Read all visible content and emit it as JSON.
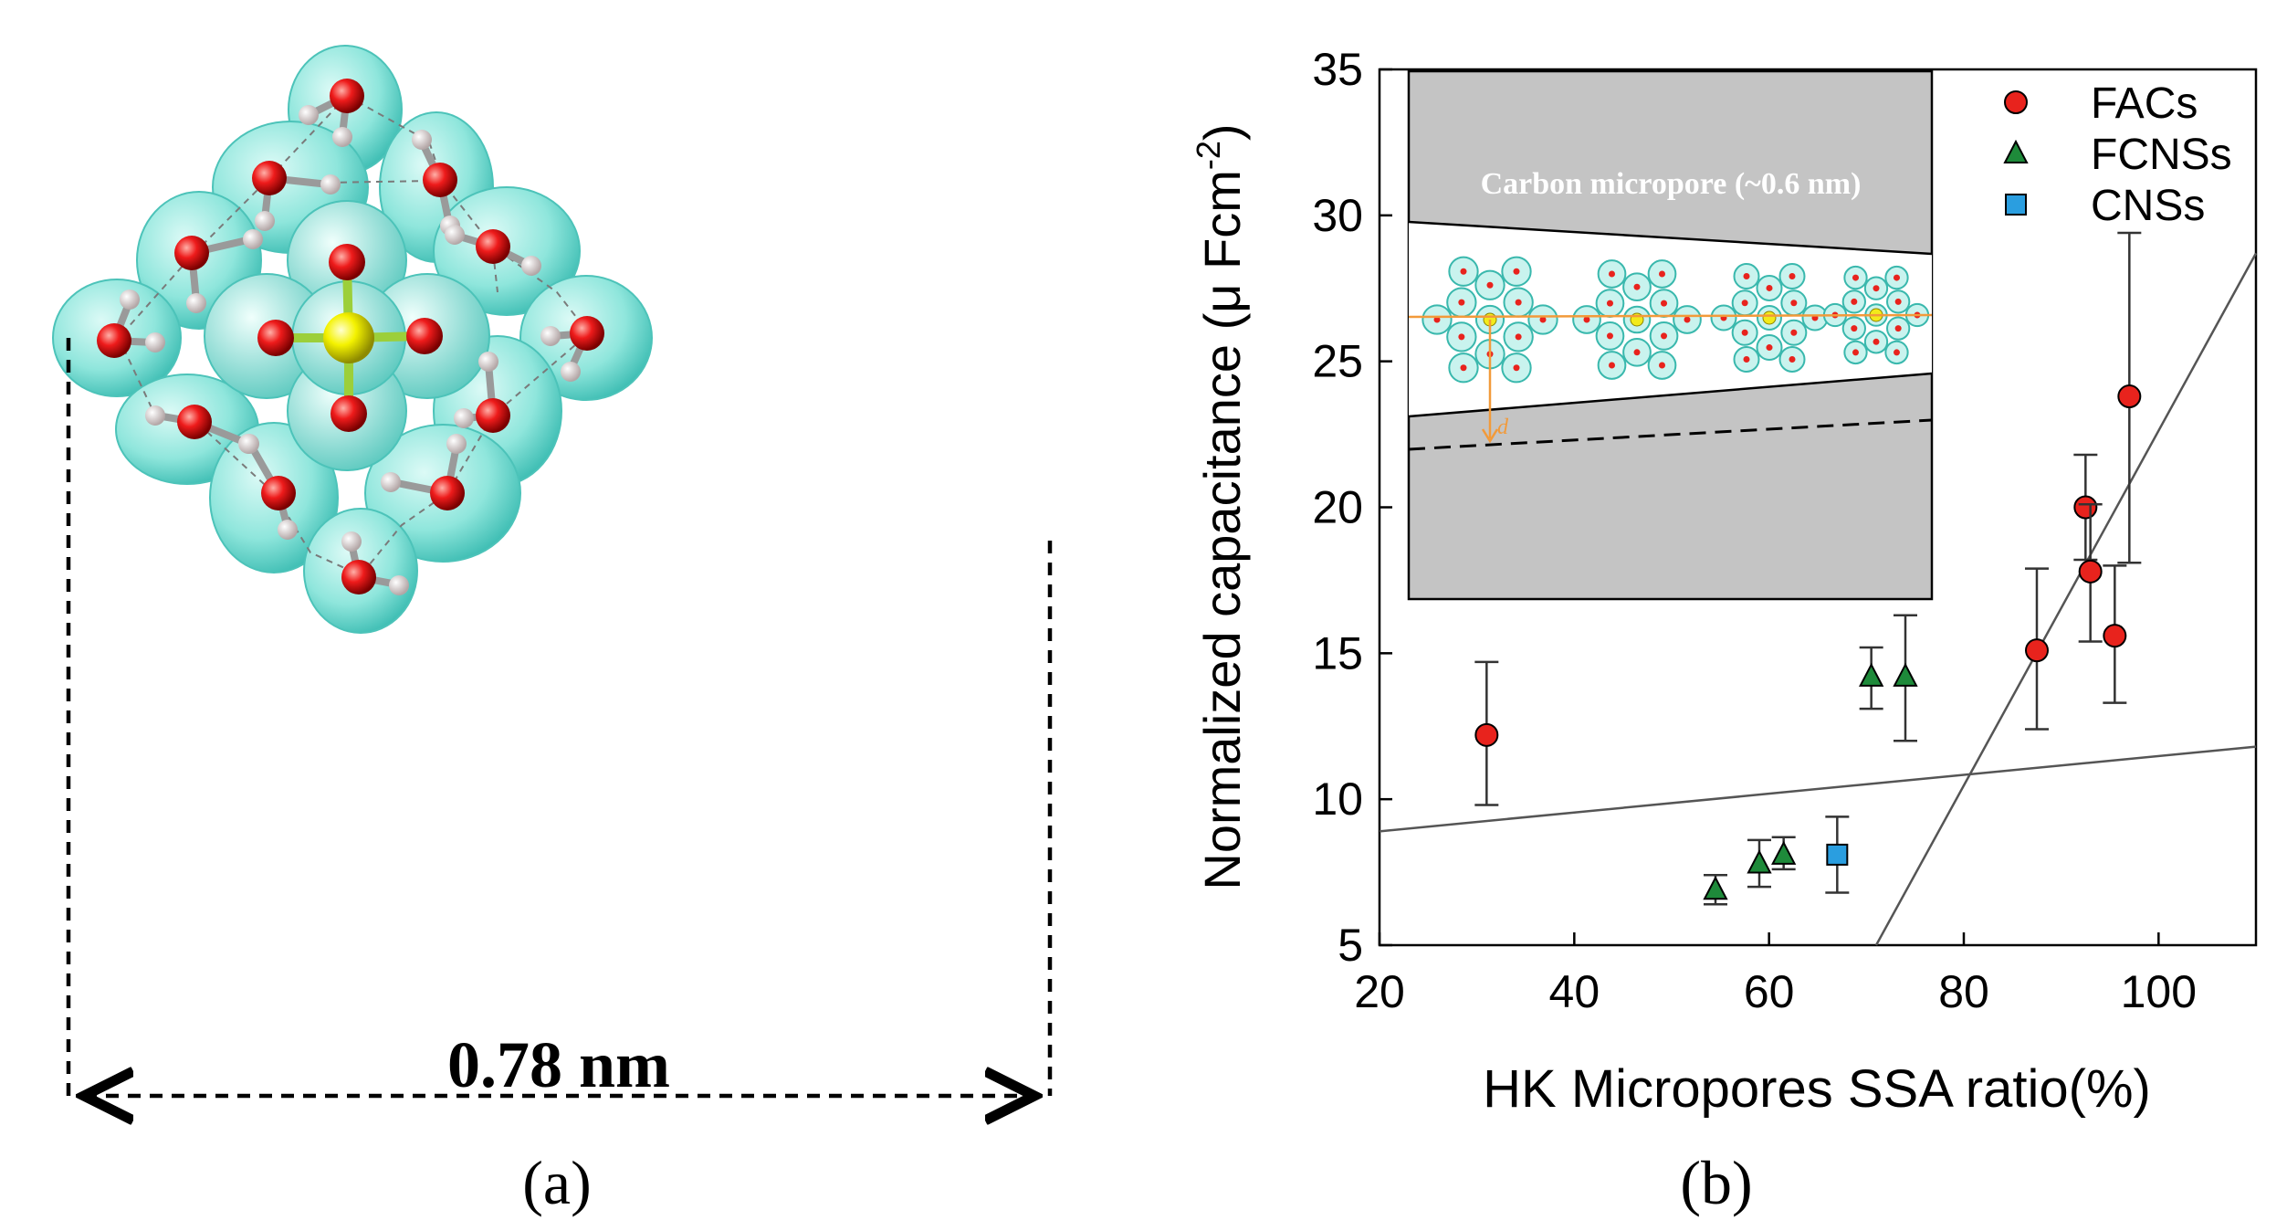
{
  "panel_a": {
    "label": "(a)",
    "dimension_label": "0.78 nm"
  },
  "panel_b": {
    "label": "(b)",
    "inset_label": "Carbon micropore (~0.6 nm)",
    "inset_d_label": "d"
  },
  "chart_data": {
    "type": "scatter",
    "xlabel": "HK Micropores SSA ratio(%)",
    "ylabel_main": "Normalized capacitance (",
    "ylabel_mu": "μ",
    "ylabel_unit": " Fcm",
    "ylabel_exp": "-2",
    "ylabel_close": ")",
    "xlim": [
      20,
      110
    ],
    "ylim": [
      5,
      35
    ],
    "x_ticks": [
      "20",
      "40",
      "60",
      "80",
      "100"
    ],
    "y_ticks": [
      "5",
      "10",
      "15",
      "20",
      "25",
      "30",
      "35"
    ],
    "legend_position": "top-right",
    "series": [
      {
        "name": "FACs",
        "marker": "circle",
        "color": "#e8231d",
        "points": [
          {
            "x": 31,
            "y": 12.2,
            "ylo": 9.8,
            "yhi": 14.7
          },
          {
            "x": 87.5,
            "y": 15.1,
            "ylo": 12.4,
            "yhi": 17.9
          },
          {
            "x": 92.5,
            "y": 20.0,
            "ylo": 18.2,
            "yhi": 21.8
          },
          {
            "x": 93,
            "y": 17.8,
            "ylo": 15.4,
            "yhi": 20.1
          },
          {
            "x": 95.5,
            "y": 15.6,
            "ylo": 13.3,
            "yhi": 18.0
          },
          {
            "x": 97,
            "y": 23.8,
            "ylo": 18.1,
            "yhi": 29.4
          }
        ]
      },
      {
        "name": "FCNSs",
        "marker": "triangle",
        "color": "#1e8a3a",
        "points": [
          {
            "x": 54.5,
            "y": 6.9,
            "ylo": 6.4,
            "yhi": 7.4
          },
          {
            "x": 59,
            "y": 7.8,
            "ylo": 7.0,
            "yhi": 8.6
          },
          {
            "x": 61.5,
            "y": 8.1,
            "ylo": 7.6,
            "yhi": 8.7
          },
          {
            "x": 70.5,
            "y": 14.2,
            "ylo": 13.1,
            "yhi": 15.2
          },
          {
            "x": 74,
            "y": 14.2,
            "ylo": 12.0,
            "yhi": 16.3
          }
        ]
      },
      {
        "name": "CNSs",
        "marker": "square",
        "color": "#2a9ee0",
        "points": [
          {
            "x": 67,
            "y": 8.1,
            "ylo": 6.8,
            "yhi": 9.4
          }
        ]
      }
    ],
    "fit_lines": [
      {
        "x1": 20,
        "y1": 8.9,
        "x2": 110,
        "y2": 11.8
      },
      {
        "x1": 71,
        "y1": 5.0,
        "x2": 110,
        "y2": 28.7
      }
    ]
  }
}
